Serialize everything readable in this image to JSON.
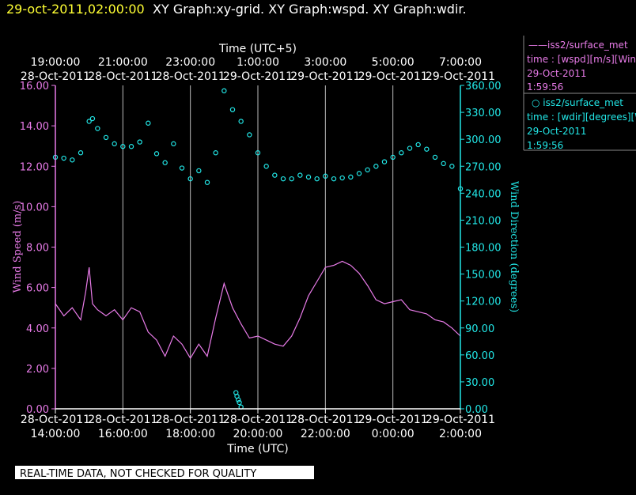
{
  "header": {
    "timestamp": "29-oct-2011,02:00:00",
    "graphs": "XY Graph:xy-grid.  XY Graph:wspd.  XY Graph:wdir."
  },
  "top_axis": {
    "title": "Time (UTC+5)",
    "ticks": [
      {
        "time": "19:00:00",
        "date": "28-Oct-2011"
      },
      {
        "time": "21:00:00",
        "date": "28-Oct-2011"
      },
      {
        "time": "23:00:00",
        "date": "28-Oct-2011"
      },
      {
        "time": "1:00:00",
        "date": "29-Oct-2011"
      },
      {
        "time": "3:00:00",
        "date": "29-Oct-2011"
      },
      {
        "time": "5:00:00",
        "date": "29-Oct-2011"
      },
      {
        "time": "7:00:00",
        "date": "29-Oct-2011"
      }
    ]
  },
  "bottom_axis": {
    "title": "Time (UTC)",
    "ticks": [
      {
        "date": "28-Oct-2011",
        "time": "14:00:00"
      },
      {
        "date": "28-Oct-2011",
        "time": "16:00:00"
      },
      {
        "date": "28-Oct-2011",
        "time": "18:00:00"
      },
      {
        "date": "28-Oct-2011",
        "time": "20:00:00"
      },
      {
        "date": "28-Oct-2011",
        "time": "22:00:00"
      },
      {
        "date": "29-Oct-2011",
        "time": "0:00:00"
      },
      {
        "date": "29-Oct-2011",
        "time": "2:00:00"
      }
    ]
  },
  "legend": {
    "wspd": {
      "line1": "——iss2/surface_met",
      "line2": "time : [wspd][m/s][Wind",
      "line3": "29-Oct-2011",
      "line4": "1:59:56",
      "color": "#e87be8"
    },
    "wdir": {
      "line1": "○  iss2/surface_met",
      "line2": "time : [wdir][degrees][W",
      "line3": "29-Oct-2011",
      "line4": "1:59:56",
      "color": "#22e8e8"
    }
  },
  "footer": {
    "note": "REAL-TIME DATA, NOT CHECKED FOR QUALITY"
  },
  "chart_data": {
    "type": "line",
    "x_unit": "hours UTC from 28-Oct-2011 14:00",
    "xlim": [
      0,
      12
    ],
    "grid": "vertical",
    "y_left": {
      "label": "Wind Speed (m/s)",
      "ylim": [
        0,
        16
      ],
      "ticks": [
        "0.00",
        "2.00",
        "4.00",
        "6.00",
        "8.00",
        "10.00",
        "12.00",
        "14.00",
        "16.00"
      ],
      "color": "#e87be8"
    },
    "y_right": {
      "label": "Wind Direction (degrees)",
      "ylim": [
        0,
        360
      ],
      "ticks": [
        "0.00",
        "30.00",
        "60.00",
        "90.00",
        "120.00",
        "150.00",
        "180.00",
        "210.00",
        "240.00",
        "270.00",
        "300.00",
        "330.00",
        "360.00"
      ],
      "color": "#22e8e8"
    },
    "series": [
      {
        "name": "iss2/surface_met time : [wspd][m/s]",
        "style": "line",
        "axis": "left",
        "x": [
          0,
          0.25,
          0.5,
          0.75,
          0.9,
          1.0,
          1.1,
          1.25,
          1.5,
          1.75,
          2.0,
          2.25,
          2.5,
          2.75,
          3.0,
          3.25,
          3.5,
          3.75,
          4.0,
          4.25,
          4.5,
          4.75,
          5.0,
          5.25,
          5.5,
          5.75,
          6.0,
          6.25,
          6.5,
          6.75,
          7.0,
          7.25,
          7.5,
          7.75,
          8.0,
          8.25,
          8.5,
          8.75,
          9.0,
          9.25,
          9.5,
          9.75,
          10.0,
          10.25,
          10.5,
          10.75,
          11.0,
          11.25,
          11.5,
          11.75,
          12.0
        ],
        "values": [
          5.2,
          4.6,
          5.0,
          4.4,
          5.8,
          7.0,
          5.2,
          4.9,
          4.6,
          4.9,
          4.4,
          5.0,
          4.8,
          3.8,
          3.4,
          2.6,
          3.6,
          3.2,
          2.5,
          3.2,
          2.6,
          4.5,
          6.2,
          5.0,
          4.2,
          3.5,
          3.6,
          3.4,
          3.2,
          3.1,
          3.6,
          4.5,
          5.6,
          6.3,
          7.0,
          7.1,
          7.3,
          7.1,
          6.7,
          6.1,
          5.4,
          5.2,
          5.3,
          5.4,
          4.9,
          4.8,
          4.7,
          4.4,
          4.3,
          4.0,
          3.6
        ]
      },
      {
        "name": "iss2/surface_met time : [wdir][degrees]",
        "style": "markers",
        "axis": "right",
        "x": [
          0,
          0.25,
          0.5,
          0.75,
          1.0,
          1.1,
          1.25,
          1.5,
          1.75,
          2.0,
          2.25,
          2.5,
          2.75,
          3.0,
          3.25,
          3.5,
          3.75,
          4.0,
          4.25,
          4.5,
          4.75,
          5.0,
          5.25,
          5.5,
          5.75,
          6.0,
          6.25,
          6.5,
          6.75,
          7.0,
          7.25,
          7.5,
          7.75,
          8.0,
          8.25,
          8.5,
          8.75,
          9.0,
          9.25,
          9.5,
          9.75,
          10.0,
          10.25,
          10.5,
          10.75,
          11.0,
          11.25,
          11.5,
          11.75,
          12.0
        ],
        "values": [
          280,
          279,
          277,
          285,
          320,
          323,
          312,
          302,
          295,
          292,
          292,
          297,
          318,
          284,
          274,
          295,
          268,
          256,
          265,
          252,
          285,
          354,
          333,
          320,
          305,
          285,
          270,
          260,
          256,
          256,
          260,
          258,
          256,
          259,
          256,
          257,
          258,
          262,
          266,
          270,
          275,
          280,
          285,
          290,
          294,
          289,
          280,
          273,
          270,
          245
        ]
      },
      {
        "name": "iss2/surface_met time : [wdir][degrees] (low)",
        "style": "markers",
        "axis": "right",
        "x": [
          5.35,
          5.38,
          5.42,
          5.45,
          5.5
        ],
        "values": [
          18,
          14,
          10,
          7,
          2
        ]
      }
    ]
  }
}
